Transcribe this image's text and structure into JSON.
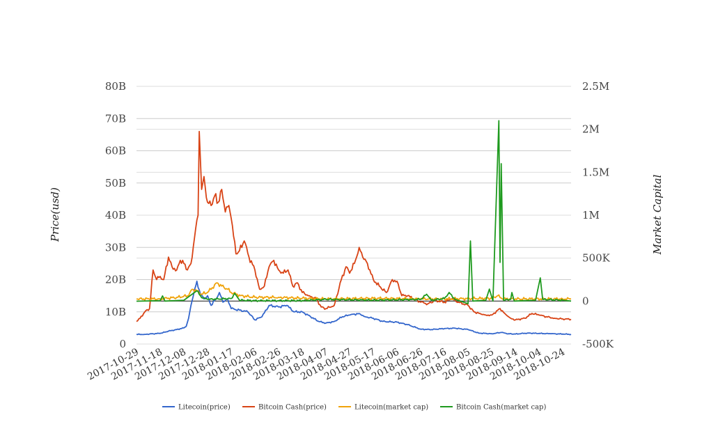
{
  "chart_data": {
    "type": "line",
    "title": "",
    "ylabel": "Price(usd)",
    "y2label": "Market Capital",
    "ylim": [
      0,
      80000000000
    ],
    "y2lim": [
      -500000,
      2500000
    ],
    "y_ticks": [
      "0",
      "10B",
      "20B",
      "30B",
      "40B",
      "50B",
      "60B",
      "70B",
      "80B"
    ],
    "y2_ticks": [
      "-500K",
      "0",
      "500K",
      "1M",
      "1.5M",
      "2M",
      "2.5M"
    ],
    "x_ticks": [
      "2017-10-29",
      "2017-11-18",
      "2017-12-08",
      "2017-12-28",
      "2018-01-17",
      "2018-02-06",
      "2018-02-26",
      "2018-03-18",
      "2018-04-07",
      "2018-04-27",
      "2018-05-17",
      "2018-06-06",
      "2018-06-26",
      "2018-07-16",
      "2018-08-05",
      "2018-08-25",
      "2018-09-14",
      "2018-10-04",
      "2018-10-24"
    ],
    "xlim": [
      "2017-10-29",
      "2018-10-31"
    ],
    "grid": true,
    "legend_position": "bottom",
    "series": [
      {
        "name": "Litecoin(price)",
        "axis": "left",
        "color": "#3366cc",
        "points": [
          [
            "2017-10-29",
            3000000000.0
          ],
          [
            "2017-11-05",
            3000000000.0
          ],
          [
            "2017-11-12",
            3200000000.0
          ],
          [
            "2017-11-18",
            3300000000.0
          ],
          [
            "2017-11-25",
            4000000000.0
          ],
          [
            "2017-12-02",
            4500000000.0
          ],
          [
            "2017-12-08",
            5000000000.0
          ],
          [
            "2017-12-10",
            5500000000.0
          ],
          [
            "2017-12-12",
            8000000000.0
          ],
          [
            "2017-12-14",
            12000000000.0
          ],
          [
            "2017-12-16",
            15000000000.0
          ],
          [
            "2017-12-19",
            19500000000.0
          ],
          [
            "2017-12-22",
            15500000000.0
          ],
          [
            "2017-12-25",
            14000000000.0
          ],
          [
            "2017-12-28",
            15000000000.0
          ],
          [
            "2017-12-31",
            12000000000.0
          ],
          [
            "2018-01-04",
            14000000000.0
          ],
          [
            "2018-01-07",
            16000000000.0
          ],
          [
            "2018-01-10",
            13000000000.0
          ],
          [
            "2018-01-14",
            14000000000.0
          ],
          [
            "2018-01-17",
            11000000000.0
          ],
          [
            "2018-01-24",
            10500000000.0
          ],
          [
            "2018-01-31",
            10000000000.0
          ],
          [
            "2018-02-06",
            7500000000.0
          ],
          [
            "2018-02-12",
            8500000000.0
          ],
          [
            "2018-02-18",
            12000000000.0
          ],
          [
            "2018-02-26",
            11500000000.0
          ],
          [
            "2018-03-05",
            12000000000.0
          ],
          [
            "2018-03-11",
            10000000000.0
          ],
          [
            "2018-03-18",
            10000000000.0
          ],
          [
            "2018-03-25",
            8500000000.0
          ],
          [
            "2018-04-01",
            7000000000.0
          ],
          [
            "2018-04-07",
            6500000000.0
          ],
          [
            "2018-04-14",
            7000000000.0
          ],
          [
            "2018-04-21",
            8500000000.0
          ],
          [
            "2018-04-27",
            9000000000.0
          ],
          [
            "2018-05-05",
            9500000000.0
          ],
          [
            "2018-05-10",
            8500000000.0
          ],
          [
            "2018-05-17",
            8000000000.0
          ],
          [
            "2018-05-25",
            7000000000.0
          ],
          [
            "2018-06-06",
            6800000000.0
          ],
          [
            "2018-06-15",
            6000000000.0
          ],
          [
            "2018-06-26",
            4600000000.0
          ],
          [
            "2018-07-05",
            4500000000.0
          ],
          [
            "2018-07-16",
            4800000000.0
          ],
          [
            "2018-07-25",
            4900000000.0
          ],
          [
            "2018-08-05",
            4500000000.0
          ],
          [
            "2018-08-14",
            3400000000.0
          ],
          [
            "2018-08-25",
            3200000000.0
          ],
          [
            "2018-09-02",
            3600000000.0
          ],
          [
            "2018-09-08",
            3200000000.0
          ],
          [
            "2018-09-14",
            3100000000.0
          ],
          [
            "2018-09-24",
            3400000000.0
          ],
          [
            "2018-10-04",
            3300000000.0
          ],
          [
            "2018-10-14",
            3200000000.0
          ],
          [
            "2018-10-24",
            3100000000.0
          ],
          [
            "2018-10-31",
            3000000000.0
          ]
        ]
      },
      {
        "name": "Bitcoin Cash(price)",
        "axis": "left",
        "color": "#d84315",
        "points": [
          [
            "2017-10-29",
            7000000000.0
          ],
          [
            "2017-11-01",
            8000000000.0
          ],
          [
            "2017-11-05",
            10000000000.0
          ],
          [
            "2017-11-09",
            11000000000.0
          ],
          [
            "2017-11-12",
            23000000000.0
          ],
          [
            "2017-11-15",
            20000000000.0
          ],
          [
            "2017-11-18",
            21000000000.0
          ],
          [
            "2017-11-21",
            20000000000.0
          ],
          [
            "2017-11-25",
            27000000000.0
          ],
          [
            "2017-11-28",
            24000000000.0
          ],
          [
            "2017-12-02",
            23000000000.0
          ],
          [
            "2017-12-05",
            26000000000.0
          ],
          [
            "2017-12-08",
            25000000000.0
          ],
          [
            "2017-12-11",
            23000000000.0
          ],
          [
            "2017-12-14",
            25000000000.0
          ],
          [
            "2017-12-17",
            33000000000.0
          ],
          [
            "2017-12-20",
            40000000000.0
          ],
          [
            "2017-12-21",
            66000000000.0
          ],
          [
            "2017-12-23",
            48000000000.0
          ],
          [
            "2017-12-25",
            52000000000.0
          ],
          [
            "2017-12-28",
            44000000000.0
          ],
          [
            "2017-12-31",
            43000000000.0
          ],
          [
            "2018-01-03",
            46000000000.0
          ],
          [
            "2018-01-06",
            44000000000.0
          ],
          [
            "2018-01-09",
            48000000000.0
          ],
          [
            "2018-01-12",
            41000000000.0
          ],
          [
            "2018-01-15",
            43000000000.0
          ],
          [
            "2018-01-17",
            39000000000.0
          ],
          [
            "2018-01-21",
            28000000000.0
          ],
          [
            "2018-01-24",
            29000000000.0
          ],
          [
            "2018-01-28",
            32000000000.0
          ],
          [
            "2018-02-01",
            27000000000.0
          ],
          [
            "2018-02-06",
            23000000000.0
          ],
          [
            "2018-02-10",
            17000000000.0
          ],
          [
            "2018-02-14",
            18000000000.0
          ],
          [
            "2018-02-18",
            24000000000.0
          ],
          [
            "2018-02-22",
            26000000000.0
          ],
          [
            "2018-02-26",
            23000000000.0
          ],
          [
            "2018-03-02",
            22000000000.0
          ],
          [
            "2018-03-06",
            23000000000.0
          ],
          [
            "2018-03-10",
            18000000000.0
          ],
          [
            "2018-03-14",
            19000000000.0
          ],
          [
            "2018-03-18",
            16000000000.0
          ],
          [
            "2018-03-24",
            15000000000.0
          ],
          [
            "2018-03-30",
            14000000000.0
          ],
          [
            "2018-04-03",
            11500000000.0
          ],
          [
            "2018-04-07",
            11000000000.0
          ],
          [
            "2018-04-14",
            12000000000.0
          ],
          [
            "2018-04-20",
            20000000000.0
          ],
          [
            "2018-04-24",
            24000000000.0
          ],
          [
            "2018-04-27",
            22000000000.0
          ],
          [
            "2018-05-01",
            25000000000.0
          ],
          [
            "2018-05-05",
            30000000000.0
          ],
          [
            "2018-05-08",
            27000000000.0
          ],
          [
            "2018-05-12",
            25000000000.0
          ],
          [
            "2018-05-17",
            20000000000.0
          ],
          [
            "2018-05-22",
            18000000000.0
          ],
          [
            "2018-05-28",
            16000000000.0
          ],
          [
            "2018-06-02",
            20000000000.0
          ],
          [
            "2018-06-06",
            19500000000.0
          ],
          [
            "2018-06-10",
            15000000000.0
          ],
          [
            "2018-06-15",
            15000000000.0
          ],
          [
            "2018-06-20",
            14000000000.0
          ],
          [
            "2018-06-26",
            13000000000.0
          ],
          [
            "2018-07-02",
            12500000000.0
          ],
          [
            "2018-07-08",
            13500000000.0
          ],
          [
            "2018-07-16",
            13000000000.0
          ],
          [
            "2018-07-22",
            14000000000.0
          ],
          [
            "2018-07-28",
            13000000000.0
          ],
          [
            "2018-08-05",
            12000000000.0
          ],
          [
            "2018-08-10",
            10000000000.0
          ],
          [
            "2018-08-15",
            9500000000.0
          ],
          [
            "2018-08-20",
            9000000000.0
          ],
          [
            "2018-08-25",
            9000000000.0
          ],
          [
            "2018-09-01",
            11000000000.0
          ],
          [
            "2018-09-05",
            9500000000.0
          ],
          [
            "2018-09-10",
            8000000000.0
          ],
          [
            "2018-09-14",
            7500000000.0
          ],
          [
            "2018-09-22",
            8000000000.0
          ],
          [
            "2018-09-28",
            9500000000.0
          ],
          [
            "2018-10-04",
            9000000000.0
          ],
          [
            "2018-10-10",
            8500000000.0
          ],
          [
            "2018-10-17",
            8000000000.0
          ],
          [
            "2018-10-24",
            7800000000.0
          ],
          [
            "2018-10-31",
            7700000000.0
          ]
        ]
      },
      {
        "name": "Litecoin(market cap)",
        "axis": "left",
        "color": "#f0a30a",
        "points": [
          [
            "2017-10-29",
            14000000000.0
          ],
          [
            "2017-11-18",
            14000000000.0
          ],
          [
            "2017-12-02",
            14500000000.0
          ],
          [
            "2017-12-12",
            15000000000.0
          ],
          [
            "2017-12-15",
            17000000000.0
          ],
          [
            "2017-12-19",
            16500000000.0
          ],
          [
            "2017-12-23",
            15500000000.0
          ],
          [
            "2017-12-28",
            16000000000.0
          ],
          [
            "2018-01-01",
            17500000000.0
          ],
          [
            "2018-01-05",
            19000000000.0
          ],
          [
            "2018-01-09",
            18000000000.0
          ],
          [
            "2018-01-14",
            17000000000.0
          ],
          [
            "2018-01-17",
            16000000000.0
          ],
          [
            "2018-01-25",
            15000000000.0
          ],
          [
            "2018-02-06",
            14500000000.0
          ],
          [
            "2018-02-26",
            14500000000.0
          ],
          [
            "2018-03-18",
            14200000000.0
          ],
          [
            "2018-04-07",
            14000000000.0
          ],
          [
            "2018-05-17",
            14200000000.0
          ],
          [
            "2018-06-26",
            14000000000.0
          ],
          [
            "2018-07-16",
            14000000000.0
          ],
          [
            "2018-08-25",
            14200000000.0
          ],
          [
            "2018-08-30",
            15000000000.0
          ],
          [
            "2018-09-03",
            14000000000.0
          ],
          [
            "2018-10-24",
            14000000000.0
          ],
          [
            "2018-10-31",
            14000000000.0
          ]
        ]
      },
      {
        "name": "Bitcoin Cash(market cap)",
        "axis": "right",
        "color": "#1e9a1e",
        "points": [
          [
            "2017-10-29",
            -1000
          ],
          [
            "2017-11-18",
            5000
          ],
          [
            "2017-11-20",
            60000
          ],
          [
            "2017-11-22",
            0
          ],
          [
            "2017-12-08",
            10000
          ],
          [
            "2017-12-19",
            120000
          ],
          [
            "2017-12-23",
            40000
          ],
          [
            "2017-12-28",
            20000
          ],
          [
            "2018-01-17",
            30000
          ],
          [
            "2018-01-20",
            90000
          ],
          [
            "2018-01-24",
            10000
          ],
          [
            "2018-02-06",
            5000
          ],
          [
            "2018-03-18",
            5000
          ],
          [
            "2018-04-07",
            20000
          ],
          [
            "2018-05-17",
            10000
          ],
          [
            "2018-06-26",
            20000
          ],
          [
            "2018-07-01",
            80000
          ],
          [
            "2018-07-05",
            10000
          ],
          [
            "2018-07-16",
            30000
          ],
          [
            "2018-07-20",
            100000
          ],
          [
            "2018-07-25",
            20000
          ],
          [
            "2018-08-05",
            -30000
          ],
          [
            "2018-08-07",
            700000
          ],
          [
            "2018-08-09",
            0
          ],
          [
            "2018-08-20",
            10000
          ],
          [
            "2018-08-23",
            140000
          ],
          [
            "2018-08-26",
            0
          ],
          [
            "2018-08-31",
            2100000
          ],
          [
            "2018-09-01",
            450000
          ],
          [
            "2018-09-02",
            1600000
          ],
          [
            "2018-09-04",
            10000
          ],
          [
            "2018-09-10",
            20000
          ],
          [
            "2018-09-11",
            100000
          ],
          [
            "2018-09-13",
            0
          ],
          [
            "2018-10-01",
            10000
          ],
          [
            "2018-10-05",
            270000
          ],
          [
            "2018-10-07",
            20000
          ],
          [
            "2018-10-24",
            10000
          ],
          [
            "2018-10-31",
            0
          ]
        ]
      }
    ]
  }
}
